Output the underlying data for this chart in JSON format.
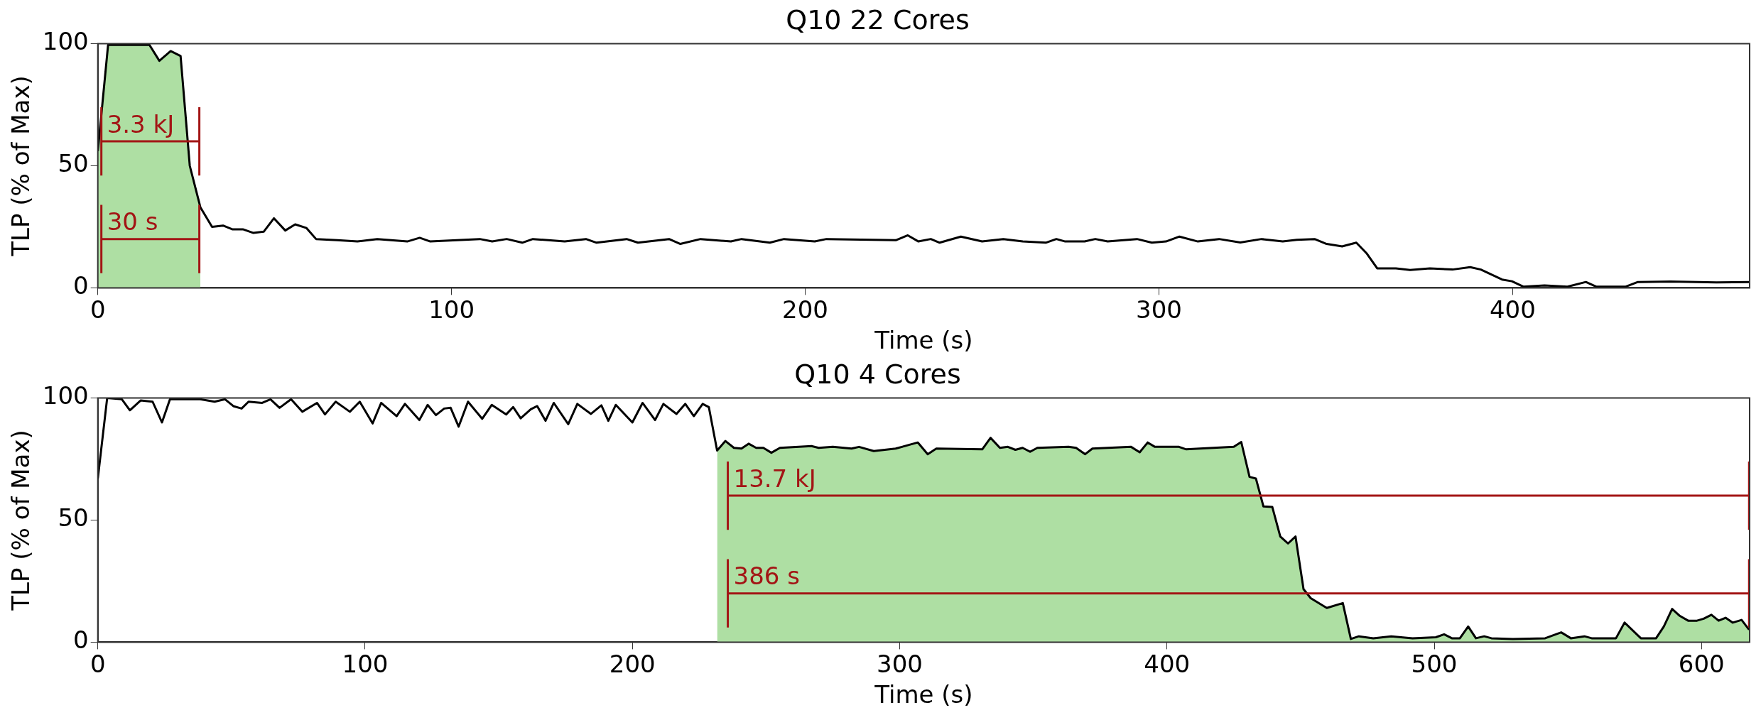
{
  "chart_data": [
    {
      "type": "line",
      "title": "Q10 22 Cores",
      "xlabel": "Time (s)",
      "ylabel": "TLP (% of Max)",
      "xlim": [
        0,
        467
      ],
      "xticks": [
        0,
        100,
        200,
        300,
        400
      ],
      "ylim": [
        0,
        100
      ],
      "yticks": [
        0,
        50,
        100
      ],
      "grid": false,
      "legend": false,
      "annotations": [
        "3.3 kJ",
        "30 s"
      ],
      "series": [
        {
          "type": "line",
          "color": "#a31515",
          "marker": "none",
          "x": [
            1,
            28.7
          ],
          "values": [
            60,
            60
          ],
          "errors": [
            14,
            14
          ]
        },
        {
          "type": "line",
          "color": "#a31515",
          "marker": "none",
          "x": [
            1,
            28.7
          ],
          "values": [
            20,
            20
          ],
          "errors": [
            14,
            14
          ]
        },
        {
          "type": "area",
          "color": "#aedfa3",
          "x": [
            0,
            2.9,
            14.6,
            17.4,
            20.6,
            23.4,
            26,
            29
          ],
          "values": [
            56,
            99.5,
            99.5,
            93,
            97,
            95,
            50,
            33
          ]
        },
        {
          "type": "line",
          "color": "#000000",
          "x": [
            0,
            2.9,
            14.6,
            17.4,
            20.6,
            23.4,
            26,
            29,
            32.3,
            35.4,
            38,
            41,
            44,
            46.9,
            49.8,
            53,
            55.8,
            59,
            61.7,
            67.7,
            73.4,
            79,
            87.5,
            91,
            94,
            108,
            111.5,
            115.6,
            120,
            123,
            132,
            138,
            141,
            149.5,
            152.7,
            161.5,
            164.7,
            170.4,
            179,
            182,
            190,
            194,
            202.7,
            206,
            225.6,
            229,
            232,
            235.5,
            238,
            244,
            250,
            256,
            261.5,
            268,
            271,
            273.5,
            279,
            282,
            285.5,
            293.8,
            298,
            302,
            305.8,
            311,
            317,
            323,
            329,
            335,
            339,
            344,
            347.4,
            351.8,
            355.8,
            358.8,
            361.7,
            367,
            371,
            376.6,
            383,
            388,
            391,
            397,
            399.8,
            403,
            409,
            415.5,
            420.7,
            423.6,
            432,
            435.4,
            444.6,
            457.6,
            467
          ],
          "values": [
            56,
            99.5,
            99.5,
            93,
            97,
            95,
            50,
            33,
            25,
            25.5,
            24,
            24,
            22.5,
            23,
            28.5,
            23.5,
            26,
            24.5,
            20,
            19.5,
            19,
            20,
            19,
            20.5,
            19,
            20,
            19,
            20,
            18.5,
            20,
            19,
            20,
            18.5,
            20,
            18.5,
            20,
            18,
            20,
            19,
            20,
            18.5,
            20,
            19,
            20,
            19.5,
            21.5,
            19,
            20,
            18.5,
            21,
            19,
            20,
            19,
            18.5,
            20,
            19,
            19,
            20,
            19,
            20,
            18.5,
            19,
            21,
            19,
            20,
            18.6,
            20,
            19,
            19.7,
            20,
            18,
            17,
            18.5,
            14,
            8,
            8,
            7.3,
            8,
            7.5,
            8.5,
            7.5,
            3.4,
            2.7,
            0.5,
            1,
            0.5,
            2.4,
            0.5,
            0.5,
            2.4,
            2.6,
            2.2,
            2.4
          ]
        }
      ]
    },
    {
      "type": "line",
      "title": "Q10 4 Cores",
      "xlabel": "Time (s)",
      "ylabel": "TLP (% of Max)",
      "xlim": [
        0,
        618
      ],
      "xticks": [
        0,
        100,
        200,
        300,
        400,
        500,
        600
      ],
      "ylim": [
        0,
        100
      ],
      "yticks": [
        0,
        50,
        100
      ],
      "grid": false,
      "legend": false,
      "annotations": [
        "13.7 kJ",
        "386 s"
      ],
      "series": [
        {
          "type": "line",
          "color": "#a31515",
          "marker": "none",
          "x": [
            235.7,
            617.8
          ],
          "values": [
            60,
            60
          ],
          "errors": [
            14,
            14
          ]
        },
        {
          "type": "line",
          "color": "#a31515",
          "marker": "none",
          "x": [
            235.7,
            617.8
          ],
          "values": [
            20,
            20
          ],
          "errors": [
            14,
            14
          ]
        },
        {
          "type": "area",
          "color": "#aedfa3",
          "x": [
            231.7,
            234.8,
            238,
            240.8,
            243.5,
            246.3,
            249,
            252,
            255.2,
            267,
            269.7,
            275,
            282,
            284.8,
            290.3,
            298.5,
            306.8,
            310.5,
            313.7,
            330.9,
            334,
            337.5,
            340.5,
            343.3,
            346,
            348.8,
            351.5,
            363.2,
            366,
            369.4,
            372.1,
            386.6,
            389.8,
            392.8,
            395.5,
            404.5,
            407.2,
            425,
            427.8,
            430.9,
            433.3,
            436.1,
            439.4,
            442.4,
            445.3,
            448.1,
            451.1,
            453.8,
            459.8,
            465.8,
            468.8,
            471.8,
            477.2,
            483.9,
            491.9,
            500.6,
            503.7,
            506.6,
            509.6,
            512.7,
            515.6,
            518.7,
            521.4,
            529.4,
            541.5,
            547.5,
            551.1,
            556.2,
            558.9,
            568,
            571.2,
            577.3,
            583,
            585.9,
            589,
            591.7,
            595,
            598.3,
            600.8,
            603.7,
            606.4,
            609,
            611.7,
            615,
            617.8
          ],
          "values": [
            78.5,
            82.4,
            79.6,
            79.3,
            81.3,
            79.6,
            79.6,
            77.6,
            79.6,
            80.3,
            79.6,
            80,
            79.3,
            80,
            78.3,
            79.3,
            81.8,
            77,
            79.3,
            79,
            83.7,
            79.6,
            80,
            78.8,
            79.6,
            78,
            79.6,
            80,
            79.6,
            77,
            79.3,
            80,
            77.8,
            81.8,
            80,
            80,
            79,
            80,
            82,
            67.7,
            67,
            55.6,
            55.4,
            43.3,
            40.4,
            43.3,
            21.7,
            18,
            14,
            16,
            1.3,
            2.4,
            1.6,
            2.4,
            1.6,
            2,
            3.2,
            1.6,
            1.6,
            6.4,
            1.6,
            2.4,
            1.6,
            1.3,
            1.6,
            4,
            1.6,
            2.4,
            1.6,
            1.6,
            8,
            1.6,
            1.6,
            6.4,
            13.6,
            10.9,
            8.8,
            8.8,
            9.6,
            11.2,
            8.8,
            10,
            8,
            9.1,
            5.1
          ]
        },
        {
          "type": "line",
          "color": "#000000",
          "x": [
            0,
            3.5,
            9,
            12,
            16,
            20.5,
            24,
            27,
            38.3,
            43.7,
            47.6,
            50.7,
            53.8,
            56.4,
            61.5,
            64.6,
            68,
            72.3,
            76.5,
            82,
            85,
            89,
            94.3,
            98,
            102.8,
            106,
            111.8,
            114.9,
            120.3,
            123.4,
            126.5,
            129.6,
            132,
            135,
            138.5,
            143.8,
            147.4,
            152.8,
            155.4,
            158.2,
            162,
            164.4,
            167.5,
            170.6,
            176,
            179.4,
            184.5,
            188.4,
            191,
            193.8,
            200,
            203.8,
            208.5,
            211.6,
            216.5,
            219.8,
            223,
            226.3,
            228.6,
            231.7,
            234.8,
            238,
            240.8,
            243.5,
            246.3,
            249,
            252,
            255.2,
            267,
            269.7,
            275,
            282,
            284.8,
            290.3,
            298.5,
            306.8,
            310.5,
            313.7,
            330.9,
            334,
            337.5,
            340.5,
            343.3,
            346,
            348.8,
            351.5,
            363.2,
            366,
            369.4,
            372.1,
            386.6,
            389.8,
            392.8,
            395.5,
            404.5,
            407.2,
            425,
            427.8,
            430.9,
            433.3,
            436.1,
            439.4,
            442.4,
            445.3,
            448.1,
            451.1,
            453.8,
            459.8,
            465.8,
            468.8,
            471.8,
            477.2,
            483.9,
            491.9,
            500.6,
            503.7,
            506.6,
            509.6,
            512.7,
            515.6,
            518.7,
            521.4,
            529.4,
            541.5,
            547.5,
            551.1,
            556.2,
            558.9,
            568,
            571.2,
            577.3,
            583,
            585.9,
            589,
            591.7,
            595,
            598.3,
            600.8,
            603.7,
            606.4,
            609,
            611.7,
            615,
            617.8
          ],
          "values": [
            67,
            100,
            99.5,
            95,
            99,
            98.5,
            90,
            99.5,
            99.5,
            98.5,
            99.5,
            96.7,
            95.7,
            98.5,
            98,
            99.5,
            96,
            99.5,
            94.4,
            98,
            93.3,
            98.5,
            94.4,
            98.5,
            89.6,
            98,
            92.6,
            97.6,
            91,
            97.2,
            93,
            95.7,
            96,
            88.3,
            98.5,
            91.5,
            97.2,
            93.3,
            96.3,
            91.7,
            95.4,
            96.7,
            90.7,
            98,
            89.3,
            97.6,
            93.5,
            97,
            90.7,
            97.2,
            90,
            98,
            91,
            97.6,
            93.5,
            97.6,
            92.6,
            97.6,
            96.3,
            78.5,
            82.4,
            79.6,
            79.3,
            81.3,
            79.6,
            79.6,
            77.6,
            79.6,
            80.3,
            79.6,
            80,
            79.3,
            80,
            78.3,
            79.3,
            81.8,
            77,
            79.3,
            79,
            83.7,
            79.6,
            80,
            78.8,
            79.6,
            78,
            79.6,
            80,
            79.6,
            77,
            79.3,
            80,
            77.8,
            81.8,
            80,
            80,
            79,
            80,
            82,
            67.7,
            67,
            55.6,
            55.4,
            43.3,
            40.4,
            43.3,
            21.7,
            18,
            14,
            16,
            1.3,
            2.4,
            1.6,
            2.4,
            1.6,
            2,
            3.2,
            1.6,
            1.6,
            6.4,
            1.6,
            2.4,
            1.6,
            1.3,
            1.6,
            4,
            1.6,
            2.4,
            1.6,
            1.6,
            8,
            1.6,
            1.6,
            6.4,
            13.6,
            10.9,
            8.8,
            8.8,
            9.6,
            11.2,
            8.8,
            10,
            8,
            9.1,
            5.1
          ]
        }
      ]
    }
  ]
}
